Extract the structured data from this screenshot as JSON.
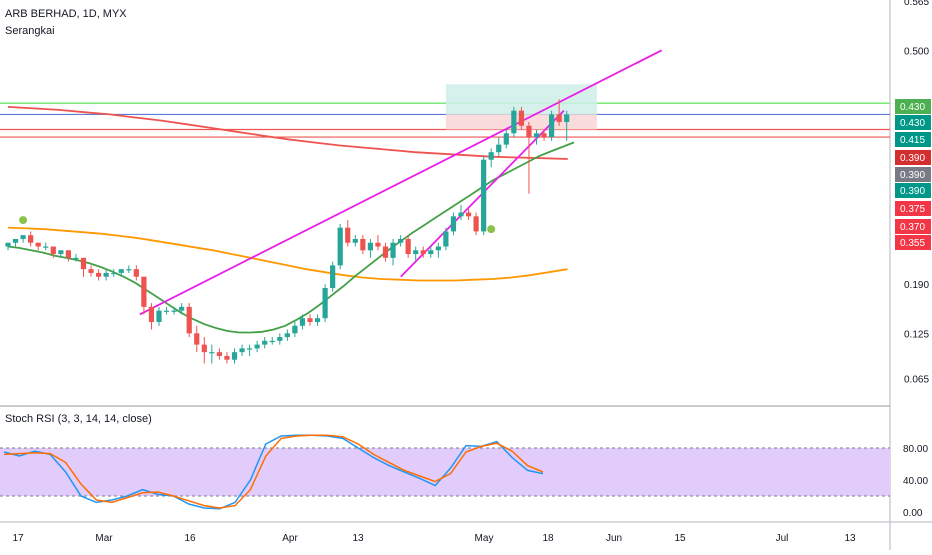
{
  "header": {
    "symbol": "ARB BERHAD, 1D, MYX",
    "indicator": "Serangkai",
    "stoch_label": "Stoch RSI (3, 3, 14, 14, close)"
  },
  "colors": {
    "up": "#26a69a",
    "down": "#ef5350",
    "ma_green": "#43a047",
    "ma_orange": "#ff9800",
    "ma_red": "#ef5350",
    "wedge": "#e91ee9",
    "hline_green": "#6ee86e",
    "hline_blue": "#5b7bd5",
    "hline_red": "#ef5350",
    "stoch_k": "#2196f3",
    "stoch_d": "#ff6d00",
    "stoch_band": "#e1ccfb",
    "zone_green": "#cfeee8",
    "zone_red": "#f9d6d6"
  },
  "chart_data": [
    {
      "type": "candlestick",
      "title": "ARB BERHAD, 1D, MYX",
      "x_ticks": [
        "17",
        "Mar",
        "16",
        "Apr",
        "13",
        "May",
        "18",
        "Jun",
        "15",
        "Jul",
        "13"
      ],
      "y_ticks": [
        "0.065",
        "0.125",
        "0.190",
        "0.500",
        "0.565"
      ],
      "price_labels": [
        {
          "value": "0.430",
          "color": "#4caf50"
        },
        {
          "value": "0.430",
          "color": "#009688"
        },
        {
          "value": "0.415",
          "color": "#009688"
        },
        {
          "value": "0.390",
          "color": "#d32f2f"
        },
        {
          "value": "0.390",
          "color": "#787b86"
        },
        {
          "value": "0.390",
          "color": "#009688"
        },
        {
          "value": "0.375",
          "color": "#f23645"
        },
        {
          "value": "0.370",
          "color": "#f23645"
        },
        {
          "value": "0.355",
          "color": "#f23645"
        }
      ],
      "candles": [
        [
          0.24,
          0.245,
          0.235,
          0.245
        ],
        [
          0.245,
          0.25,
          0.24,
          0.25
        ],
        [
          0.25,
          0.255,
          0.245,
          0.255
        ],
        [
          0.255,
          0.26,
          0.24,
          0.245
        ],
        [
          0.245,
          0.245,
          0.235,
          0.24
        ],
        [
          0.24,
          0.245,
          0.235,
          0.24
        ],
        [
          0.24,
          0.24,
          0.225,
          0.23
        ],
        [
          0.23,
          0.235,
          0.225,
          0.235
        ],
        [
          0.235,
          0.235,
          0.22,
          0.225
        ],
        [
          0.225,
          0.23,
          0.22,
          0.225
        ],
        [
          0.225,
          0.225,
          0.2,
          0.21
        ],
        [
          0.21,
          0.215,
          0.2,
          0.205
        ],
        [
          0.205,
          0.21,
          0.195,
          0.2
        ],
        [
          0.2,
          0.21,
          0.195,
          0.205
        ],
        [
          0.205,
          0.21,
          0.2,
          0.205
        ],
        [
          0.205,
          0.21,
          0.2,
          0.21
        ],
        [
          0.21,
          0.215,
          0.205,
          0.21
        ],
        [
          0.21,
          0.215,
          0.195,
          0.2
        ],
        [
          0.2,
          0.2,
          0.15,
          0.16
        ],
        [
          0.16,
          0.165,
          0.13,
          0.14
        ],
        [
          0.14,
          0.16,
          0.135,
          0.155
        ],
        [
          0.155,
          0.16,
          0.15,
          0.155
        ],
        [
          0.155,
          0.16,
          0.15,
          0.155
        ],
        [
          0.155,
          0.165,
          0.15,
          0.16
        ],
        [
          0.16,
          0.165,
          0.12,
          0.125
        ],
        [
          0.125,
          0.135,
          0.1,
          0.11
        ],
        [
          0.11,
          0.12,
          0.085,
          0.1
        ],
        [
          0.1,
          0.11,
          0.085,
          0.1
        ],
        [
          0.1,
          0.105,
          0.09,
          0.095
        ],
        [
          0.095,
          0.1,
          0.085,
          0.09
        ],
        [
          0.09,
          0.105,
          0.085,
          0.1
        ],
        [
          0.1,
          0.11,
          0.095,
          0.105
        ],
        [
          0.105,
          0.11,
          0.095,
          0.105
        ],
        [
          0.105,
          0.115,
          0.1,
          0.11
        ],
        [
          0.11,
          0.12,
          0.105,
          0.115
        ],
        [
          0.115,
          0.12,
          0.11,
          0.115
        ],
        [
          0.115,
          0.125,
          0.11,
          0.12
        ],
        [
          0.12,
          0.13,
          0.115,
          0.125
        ],
        [
          0.125,
          0.14,
          0.12,
          0.135
        ],
        [
          0.135,
          0.15,
          0.13,
          0.145
        ],
        [
          0.145,
          0.15,
          0.135,
          0.14
        ],
        [
          0.14,
          0.15,
          0.135,
          0.145
        ],
        [
          0.145,
          0.19,
          0.14,
          0.185
        ],
        [
          0.185,
          0.22,
          0.18,
          0.215
        ],
        [
          0.215,
          0.27,
          0.21,
          0.265
        ],
        [
          0.265,
          0.275,
          0.24,
          0.245
        ],
        [
          0.245,
          0.255,
          0.24,
          0.25
        ],
        [
          0.25,
          0.255,
          0.23,
          0.235
        ],
        [
          0.235,
          0.25,
          0.225,
          0.245
        ],
        [
          0.245,
          0.255,
          0.235,
          0.24
        ],
        [
          0.24,
          0.245,
          0.22,
          0.225
        ],
        [
          0.225,
          0.25,
          0.215,
          0.245
        ],
        [
          0.245,
          0.255,
          0.24,
          0.25
        ],
        [
          0.25,
          0.255,
          0.225,
          0.23
        ],
        [
          0.23,
          0.24,
          0.22,
          0.235
        ],
        [
          0.235,
          0.24,
          0.225,
          0.23
        ],
        [
          0.23,
          0.24,
          0.225,
          0.235
        ],
        [
          0.235,
          0.245,
          0.225,
          0.24
        ],
        [
          0.24,
          0.265,
          0.235,
          0.26
        ],
        [
          0.26,
          0.285,
          0.255,
          0.28
        ],
        [
          0.28,
          0.295,
          0.275,
          0.285
        ],
        [
          0.285,
          0.29,
          0.275,
          0.28
        ],
        [
          0.28,
          0.285,
          0.255,
          0.26
        ],
        [
          0.26,
          0.36,
          0.255,
          0.355
        ],
        [
          0.355,
          0.37,
          0.345,
          0.365
        ],
        [
          0.365,
          0.385,
          0.36,
          0.375
        ],
        [
          0.375,
          0.395,
          0.37,
          0.39
        ],
        [
          0.39,
          0.425,
          0.385,
          0.42
        ],
        [
          0.42,
          0.425,
          0.395,
          0.4
        ],
        [
          0.4,
          0.405,
          0.31,
          0.385
        ],
        [
          0.385,
          0.395,
          0.375,
          0.39
        ],
        [
          0.39,
          0.395,
          0.38,
          0.385
        ],
        [
          0.385,
          0.42,
          0.38,
          0.415
        ],
        [
          0.415,
          0.435,
          0.4,
          0.405
        ],
        [
          0.405,
          0.42,
          0.38,
          0.415
        ]
      ],
      "ma_green": [
        0.24,
        0.238,
        0.235,
        0.232,
        0.228,
        0.225,
        0.222,
        0.218,
        0.213,
        0.207,
        0.2,
        0.192,
        0.182,
        0.172,
        0.162,
        0.152,
        0.144,
        0.137,
        0.132,
        0.128,
        0.126,
        0.126,
        0.127,
        0.13,
        0.135,
        0.143,
        0.152,
        0.163,
        0.175,
        0.187,
        0.2,
        0.212,
        0.224,
        0.236,
        0.247,
        0.258,
        0.268,
        0.278,
        0.288,
        0.298,
        0.308,
        0.318,
        0.328,
        0.336,
        0.344,
        0.352,
        0.36,
        0.366,
        0.372,
        0.378
      ],
      "ma_orange": [
        0.265,
        0.264,
        0.263,
        0.261,
        0.259,
        0.257,
        0.254,
        0.251,
        0.247,
        0.243,
        0.239,
        0.235,
        0.23,
        0.225,
        0.22,
        0.215,
        0.21,
        0.206,
        0.202,
        0.199,
        0.197,
        0.196,
        0.195,
        0.195,
        0.195,
        0.196,
        0.197,
        0.199,
        0.202,
        0.206,
        0.21
      ],
      "ma_red": [
        0.425,
        0.423,
        0.421,
        0.418,
        0.415,
        0.411,
        0.407,
        0.402,
        0.397,
        0.392,
        0.387,
        0.382,
        0.378,
        0.374,
        0.371,
        0.368,
        0.365,
        0.363,
        0.361,
        0.359,
        0.358,
        0.357,
        0.356
      ],
      "horizontal_lines": [
        0.43,
        0.43,
        0.415,
        0.395,
        0.385
      ],
      "wedge": {
        "upper": [
          [
            0.15,
            0.015
          ],
          [
            0.5,
            0.075
          ]
        ],
        "lower": [
          [
            0.2,
            0.045
          ],
          [
            0.42,
            0.074
          ]
        ]
      },
      "markers": [
        0.275,
        0.263
      ]
    },
    {
      "type": "line",
      "title": "Stoch RSI (3, 3, 14, 14, close)",
      "y_ticks": [
        "80.00",
        "40.00",
        "0.00"
      ],
      "band": [
        20,
        80
      ],
      "series": [
        {
          "name": "K",
          "values": [
            75,
            70,
            76,
            72,
            50,
            20,
            12,
            15,
            20,
            28,
            22,
            20,
            10,
            5,
            4,
            12,
            40,
            85,
            95,
            96,
            96,
            95,
            92,
            80,
            68,
            58,
            50,
            42,
            33,
            55,
            83,
            82,
            88,
            68,
            52,
            48
          ]
        },
        {
          "name": "D",
          "values": [
            72,
            73,
            74,
            73,
            62,
            35,
            15,
            12,
            18,
            24,
            25,
            20,
            14,
            8,
            5,
            8,
            28,
            70,
            92,
            95,
            96,
            96,
            94,
            85,
            72,
            62,
            52,
            45,
            38,
            48,
            75,
            82,
            86,
            76,
            58,
            50
          ]
        }
      ]
    }
  ]
}
